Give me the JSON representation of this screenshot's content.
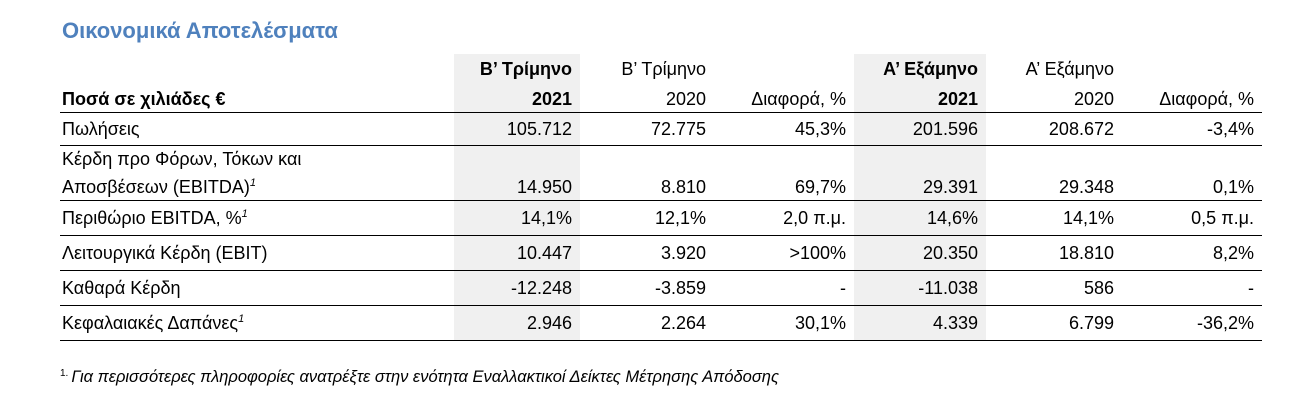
{
  "title": "Οικονομικά Αποτελέσματα",
  "table": {
    "unit_label": "Ποσά σε χιλιάδες €",
    "columns": [
      {
        "line1": "Β’ Τρίμηνο",
        "line2": "2021",
        "bold": true,
        "shaded": true
      },
      {
        "line1": "Β’ Τρίμηνο",
        "line2": "2020",
        "bold": false,
        "shaded": false
      },
      {
        "line1": "",
        "line2": "Διαφορά, %",
        "bold": false,
        "shaded": false
      },
      {
        "line1": "Α’ Εξάμηνο",
        "line2": "2021",
        "bold": true,
        "shaded": true
      },
      {
        "line1": "Α’ Εξάμηνο",
        "line2": "2020",
        "bold": false,
        "shaded": false
      },
      {
        "line1": "",
        "line2": "Διαφορά, %",
        "bold": false,
        "shaded": false
      }
    ],
    "rows": [
      {
        "label": "Πωλήσεις",
        "note": "",
        "values": [
          "105.712",
          "72.775",
          "45,3%",
          "201.596",
          "208.672",
          "-3,4%"
        ]
      },
      {
        "label_line1": "Κέρδη προ Φόρων, Τόκων και",
        "label": "Αποσβέσεων (EBITDA)",
        "note": "1",
        "values": [
          "14.950",
          "8.810",
          "69,7%",
          "29.391",
          "29.348",
          "0,1%"
        ]
      },
      {
        "label": "Περιθώριο EBITDA, %",
        "note": "1",
        "values": [
          "14,1%",
          "12,1%",
          "2,0 π.μ.",
          "14,6%",
          "14,1%",
          "0,5 π.μ."
        ]
      },
      {
        "label": "Λειτουργικά Κέρδη (EBIT)",
        "note": "",
        "values": [
          "10.447",
          "3.920",
          ">100%",
          "20.350",
          "18.810",
          "8,2%"
        ]
      },
      {
        "label": "Καθαρά Κέρδη",
        "note": "",
        "values": [
          "-12.248",
          "-3.859",
          "-",
          "-11.038",
          "586",
          "-"
        ]
      },
      {
        "label": "Κεφαλαιακές Δαπάνες",
        "note": "1",
        "values": [
          "2.946",
          "2.264",
          "30,1%",
          "4.339",
          "6.799",
          "-36,2%"
        ]
      }
    ]
  },
  "footnote": {
    "marker": "1.",
    "text": "Για περισσότερες πληροφορίες ανατρέξτε στην ενότητα Εναλλακτικοί Δείκτες Μέτρησης Απόδοσης"
  },
  "colors": {
    "title": "#4f81bd",
    "shade": "#f0f0f0",
    "rule": "#000000"
  }
}
